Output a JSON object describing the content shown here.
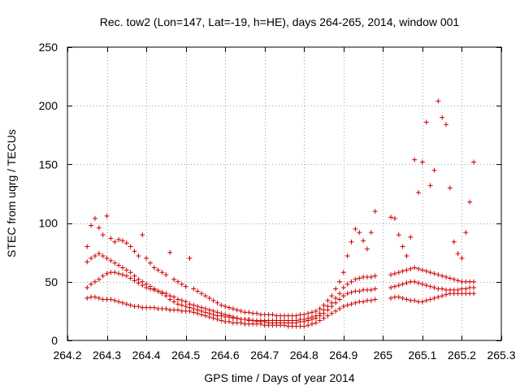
{
  "chart_data": {
    "type": "scatter",
    "title": "Rec. tow2 (Lon=147, Lat=-19, h=HE), days 264-265, 2014, window 001",
    "xlabel": "GPS time / Days of year 2014",
    "ylabel": "STEC from uqrg / TECUs",
    "xlim": [
      264.2,
      265.3
    ],
    "ylim": [
      0,
      250
    ],
    "xticks": [
      264.2,
      264.3,
      264.4,
      264.5,
      264.6,
      264.7,
      264.8,
      264.9,
      265.0,
      265.1,
      265.2,
      265.3
    ],
    "xtick_labels": [
      "264.2",
      "264.3",
      "264.4",
      "264.5",
      "264.6",
      "264.7",
      "264.8",
      "264.9",
      "265",
      "265.1",
      "265.2",
      "265.3"
    ],
    "yticks": [
      0,
      50,
      100,
      150,
      200,
      250
    ],
    "ytick_labels": [
      "0",
      "50",
      "100",
      "150",
      "200",
      "250"
    ],
    "grid": true,
    "marker": "+",
    "color": "#cc0000",
    "series": [
      {
        "x": [
          264.25,
          264.26,
          264.27,
          264.28,
          264.29,
          264.3,
          264.31,
          264.32,
          264.33,
          264.34,
          264.35,
          264.36,
          264.37,
          264.38,
          264.39,
          264.4,
          264.41,
          264.42,
          264.43,
          264.44,
          264.45,
          264.46,
          264.47,
          264.48,
          264.49,
          264.5,
          264.51,
          264.52,
          264.53,
          264.54,
          264.55,
          264.56,
          264.57,
          264.58,
          264.59,
          264.6,
          264.61,
          264.62,
          264.63,
          264.64,
          264.65,
          264.66,
          264.67,
          264.68,
          264.69,
          264.7,
          264.71,
          264.72,
          264.73,
          264.74,
          264.75,
          264.76,
          264.77,
          264.78,
          264.79,
          264.8,
          264.81,
          264.82,
          264.83,
          264.84,
          264.85,
          264.86,
          264.87,
          264.88,
          264.89,
          264.9,
          264.91,
          264.92,
          264.93,
          264.94,
          264.95,
          264.96,
          264.97,
          264.98,
          265.02,
          265.03,
          265.04,
          265.05,
          265.06,
          265.07,
          265.08,
          265.09,
          265.1,
          265.11,
          265.12,
          265.13,
          265.14,
          265.15,
          265.16,
          265.17,
          265.18,
          265.19,
          265.2,
          265.21,
          265.22,
          265.23
        ],
        "y": [
          36,
          37,
          37,
          36,
          35,
          35,
          35,
          34,
          33,
          32,
          31,
          30,
          29,
          29,
          28,
          28,
          28,
          28,
          27,
          27,
          27,
          26,
          26,
          26,
          25,
          25,
          25,
          24,
          23,
          22,
          21,
          20,
          19,
          18,
          17,
          16,
          16,
          15,
          15,
          15,
          14,
          14,
          14,
          14,
          14,
          13,
          13,
          13,
          13,
          13,
          13,
          12,
          12,
          12,
          12,
          12,
          13,
          14,
          15,
          17,
          19,
          21,
          23,
          25,
          27,
          29,
          30,
          31,
          32,
          33,
          33,
          34,
          34,
          35,
          36,
          37,
          37,
          36,
          35,
          34,
          34,
          33,
          33,
          34,
          35,
          36,
          37,
          38,
          39,
          40,
          40,
          40,
          40,
          40,
          40,
          40
        ]
      },
      {
        "x": [
          264.25,
          264.26,
          264.27,
          264.28,
          264.29,
          264.3,
          264.31,
          264.32,
          264.33,
          264.34,
          264.35,
          264.36,
          264.37,
          264.38,
          264.39,
          264.4,
          264.41,
          264.42,
          264.43,
          264.44,
          264.45,
          264.46,
          264.47,
          264.48,
          264.49,
          264.5,
          264.51,
          264.52,
          264.53,
          264.54,
          264.55,
          264.56,
          264.57,
          264.58,
          264.59,
          264.6,
          264.61,
          264.62,
          264.63,
          264.64,
          264.65,
          264.66,
          264.67,
          264.68,
          264.69,
          264.7,
          264.71,
          264.72,
          264.73,
          264.74,
          264.75,
          264.76,
          264.77,
          264.78,
          264.79,
          264.8,
          264.81,
          264.82,
          264.83,
          264.84,
          264.85,
          264.86,
          264.87,
          264.88,
          264.89,
          264.9,
          264.91,
          264.92,
          264.93,
          264.94,
          264.95,
          264.96,
          264.97,
          264.98,
          265.02,
          265.03,
          265.04,
          265.05,
          265.06,
          265.07,
          265.08,
          265.09,
          265.1,
          265.11,
          265.12,
          265.13,
          265.14,
          265.15,
          265.16,
          265.17,
          265.18,
          265.19,
          265.2,
          265.21,
          265.22,
          265.23
        ],
        "y": [
          45,
          48,
          50,
          52,
          55,
          57,
          58,
          58,
          57,
          56,
          55,
          53,
          51,
          49,
          47,
          45,
          44,
          43,
          42,
          41,
          40,
          38,
          37,
          35,
          34,
          33,
          31,
          30,
          29,
          28,
          27,
          26,
          25,
          24,
          23,
          22,
          21,
          20,
          19,
          18,
          18,
          17,
          17,
          16,
          16,
          16,
          15,
          15,
          15,
          15,
          15,
          15,
          15,
          15,
          16,
          16,
          17,
          18,
          19,
          21,
          23,
          26,
          29,
          32,
          35,
          38,
          40,
          41,
          42,
          42,
          43,
          43,
          43,
          44,
          45,
          46,
          47,
          48,
          49,
          50,
          50,
          49,
          48,
          47,
          46,
          45,
          44,
          44,
          43,
          43,
          43,
          43,
          44,
          44,
          45,
          45
        ]
      },
      {
        "x": [
          264.25,
          264.26,
          264.27,
          264.28,
          264.29,
          264.3,
          264.31,
          264.32,
          264.33,
          264.34,
          264.35,
          264.36,
          264.37,
          264.38,
          264.39,
          264.4,
          264.41,
          264.42,
          264.43,
          264.44,
          264.45,
          264.46,
          264.47,
          264.48,
          264.49,
          264.5,
          264.51,
          264.52,
          264.53,
          264.54,
          264.55,
          264.56,
          264.57,
          264.58,
          264.59,
          264.6,
          264.61,
          264.62,
          264.63,
          264.64,
          264.65,
          264.66,
          264.67,
          264.68,
          264.69,
          264.7,
          264.71,
          264.72,
          264.73,
          264.74,
          264.75,
          264.76,
          264.77,
          264.78,
          264.79,
          264.8,
          264.81,
          264.82,
          264.83,
          264.84,
          264.85,
          264.86,
          264.87,
          264.88,
          264.89,
          264.9,
          264.91,
          264.92,
          264.93,
          264.94,
          264.95,
          264.96,
          264.97,
          264.98,
          265.02,
          265.03,
          265.04,
          265.05,
          265.06,
          265.07,
          265.08,
          265.09,
          265.1,
          265.11,
          265.12,
          265.13,
          265.14,
          265.15,
          265.16,
          265.17,
          265.18,
          265.19,
          265.2,
          265.21,
          265.22,
          265.23
        ],
        "y": [
          67,
          70,
          72,
          74,
          72,
          70,
          68,
          66,
          64,
          62,
          60,
          58,
          55,
          52,
          50,
          48,
          46,
          44,
          42,
          40,
          38,
          35,
          33,
          31,
          30,
          29,
          28,
          27,
          26,
          25,
          24,
          23,
          22,
          21,
          21,
          20,
          20,
          19,
          19,
          18,
          18,
          18,
          17,
          17,
          17,
          17,
          17,
          17,
          17,
          17,
          17,
          17,
          17,
          17,
          18,
          18,
          19,
          20,
          21,
          23,
          26,
          29,
          32,
          36,
          40,
          45,
          48,
          50,
          52,
          53,
          54,
          54,
          54,
          55,
          56,
          57,
          58,
          59,
          60,
          61,
          62,
          61,
          60,
          59,
          58,
          57,
          56,
          55,
          54,
          53,
          52,
          51,
          50,
          50,
          50,
          50
        ]
      },
      {
        "x": [
          264.25,
          264.26,
          264.27,
          264.28,
          264.29,
          264.3,
          264.31,
          264.32,
          264.33,
          264.34,
          264.35,
          264.36,
          264.37,
          264.38,
          264.39,
          264.4,
          264.41,
          264.42,
          264.43,
          264.44,
          264.45,
          264.46,
          264.47,
          264.48,
          264.49,
          264.5,
          264.51,
          264.52,
          264.53,
          264.54,
          264.55,
          264.56,
          264.57,
          264.58,
          264.59,
          264.6,
          264.61,
          264.62,
          264.63,
          264.64,
          264.65,
          264.66,
          264.67,
          264.68,
          264.69,
          264.7,
          264.71,
          264.72,
          264.73,
          264.74,
          264.75,
          264.76,
          264.77,
          264.78,
          264.79,
          264.8,
          264.81,
          264.82,
          264.83,
          264.84,
          264.85,
          264.86,
          264.87,
          264.88,
          264.89,
          264.9,
          264.91,
          264.92,
          264.93,
          264.94,
          264.95,
          264.96,
          264.97,
          264.98,
          265.02,
          265.03,
          265.04,
          265.05,
          265.06,
          265.07,
          265.08,
          265.09,
          265.1,
          265.11,
          265.12,
          265.13,
          265.14,
          265.15,
          265.16,
          265.17,
          265.18,
          265.19,
          265.2,
          265.21,
          265.22,
          265.23
        ],
        "y": [
          80,
          98,
          104,
          96,
          90,
          106,
          87,
          84,
          86,
          85,
          83,
          80,
          76,
          72,
          90,
          70,
          66,
          62,
          60,
          58,
          56,
          75,
          52,
          50,
          48,
          46,
          70,
          44,
          42,
          40,
          38,
          36,
          34,
          32,
          30,
          29,
          28,
          27,
          26,
          25,
          24,
          24,
          23,
          23,
          22,
          22,
          22,
          22,
          21,
          21,
          21,
          21,
          21,
          21,
          22,
          22,
          23,
          24,
          25,
          27,
          30,
          34,
          38,
          44,
          50,
          58,
          72,
          84,
          95,
          92,
          85,
          78,
          92,
          110,
          105,
          104,
          90,
          80,
          72,
          88,
          154,
          126,
          152,
          186,
          132,
          145,
          204,
          190,
          184,
          130,
          84,
          74,
          70,
          92,
          118,
          152
        ]
      }
    ]
  }
}
